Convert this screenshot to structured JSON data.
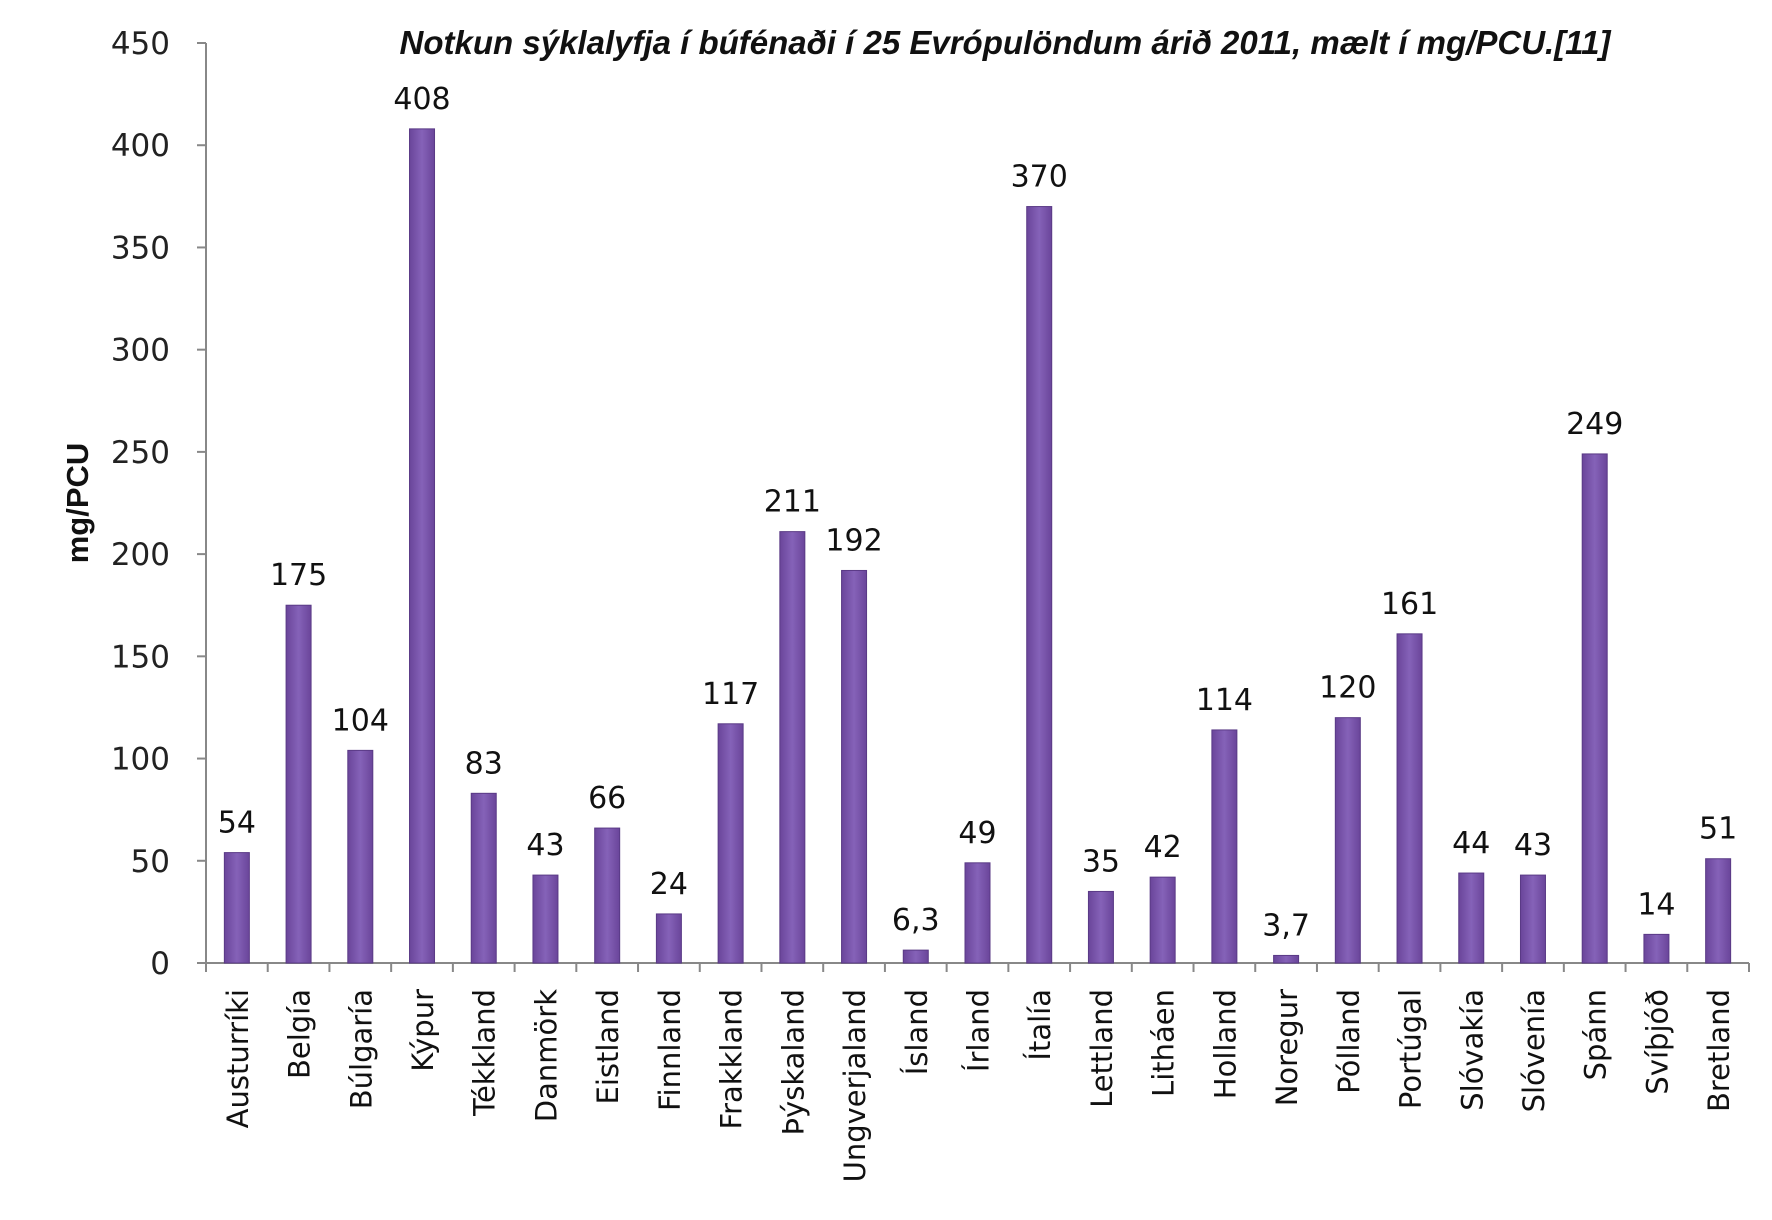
{
  "chart_data": {
    "type": "bar",
    "title": "Notkun sýklalyfja í búfénaði í 25 Evrópulöndum árið 2011, mælt í mg/PCU.[11]",
    "xlabel": "",
    "ylabel": "mg/PCU",
    "ylim": [
      0,
      450
    ],
    "yticks": [
      0,
      50,
      100,
      150,
      200,
      250,
      300,
      350,
      400,
      450
    ],
    "grid": false,
    "categories": [
      "Austurríki",
      "Belgía",
      "Búlgaría",
      "Kýpur",
      "Tékkland",
      "Danmörk",
      "Eistland",
      "Finnland",
      "Frakkland",
      "Þýskaland",
      "Ungverjaland",
      "Ísland",
      "Írland",
      "Ítalía",
      "Lettland",
      "Litháen",
      "Holland",
      "Noregur",
      "Pólland",
      "Portúgal",
      "Slóvakía",
      "Slóvenía",
      "Spánn",
      "Svíþjóð",
      "Bretland"
    ],
    "values": [
      54,
      175,
      104,
      408,
      83,
      43,
      66,
      24,
      117,
      211,
      192,
      6.3,
      49,
      370,
      35,
      42,
      114,
      3.7,
      120,
      161,
      44,
      43,
      249,
      14,
      51
    ],
    "data_labels": [
      "54",
      "175",
      "104",
      "408",
      "83",
      "43",
      "66",
      "24",
      "117",
      "211",
      "192",
      "6,3",
      "49",
      "370",
      "35",
      "42",
      "114",
      "3,7",
      "120",
      "161",
      "44",
      "43",
      "249",
      "14",
      "51"
    ],
    "colors": {
      "bar": "#7650a6",
      "bar_edge": "#5a3a86"
    }
  }
}
